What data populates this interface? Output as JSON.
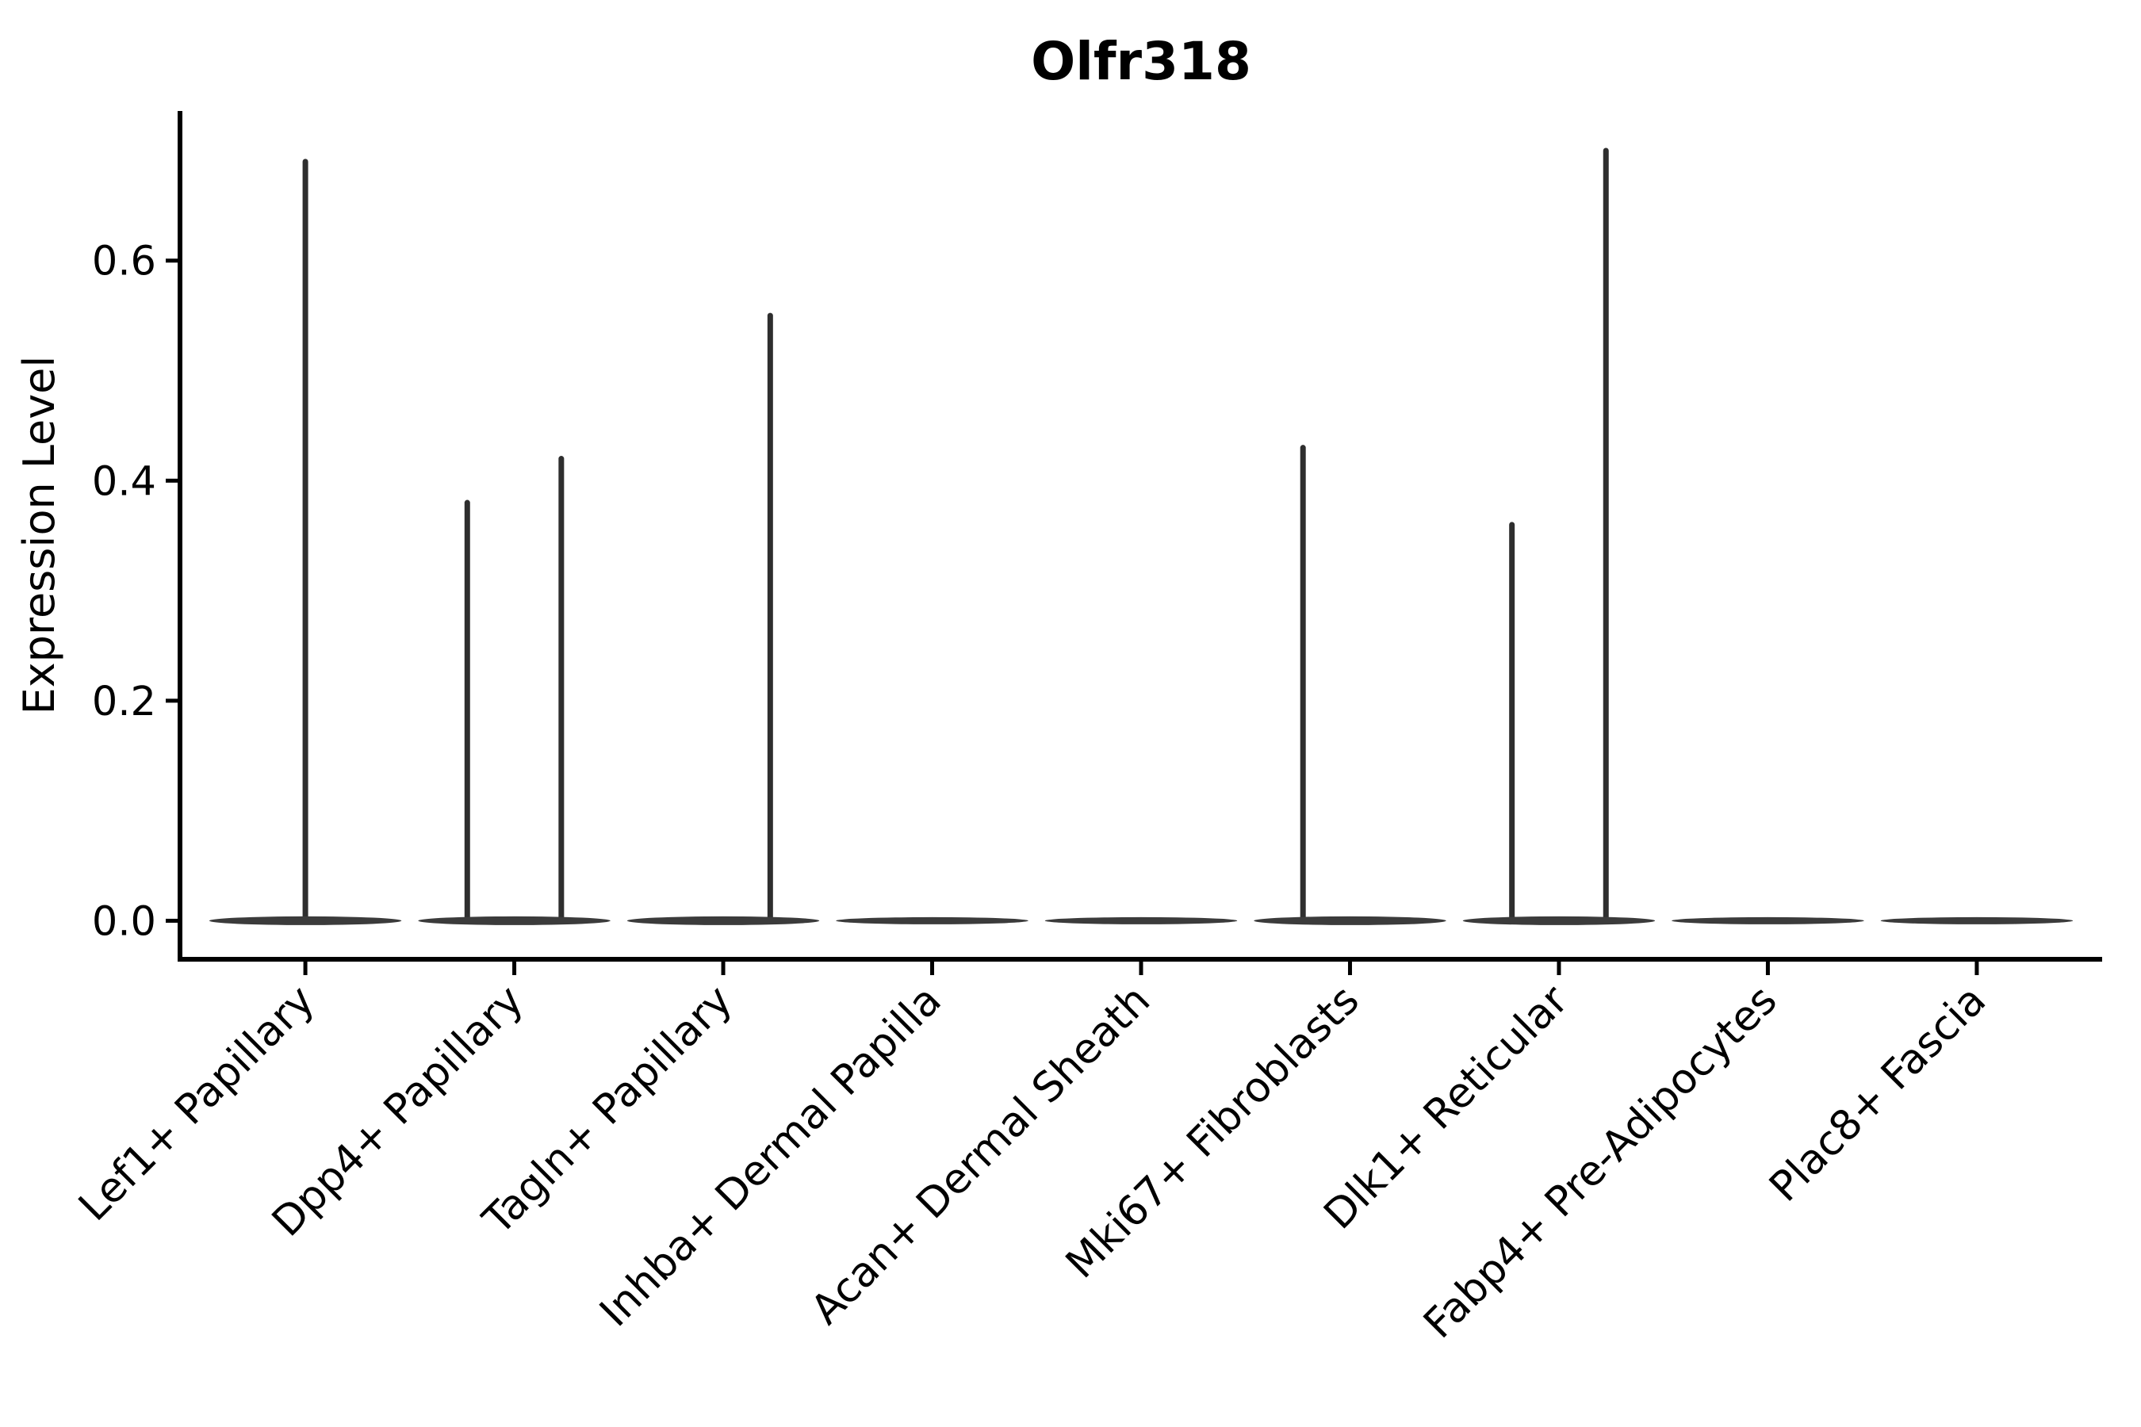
{
  "chart_data": {
    "type": "violin",
    "title": "Olfr318",
    "ylabel": "Expression Level",
    "xlabel": "",
    "grid": false,
    "legend": "none",
    "ylim": [
      -0.035,
      0.736
    ],
    "yticks": [
      "0.0",
      "0.2",
      "0.4",
      "0.6"
    ],
    "ytick_values": [
      0.0,
      0.2,
      0.4,
      0.6
    ],
    "categories": [
      "Lef1+ Papillary",
      "Dpp4+ Papillary",
      "Tagln+ Papillary",
      "Inhba+ Dermal Papilla",
      "Acan+ Dermal Sheath",
      "Mki67+ Fibroblasts",
      "Dlk1+ Reticular",
      "Fabp4+ Pre-Adipocytes",
      "Plac8+ Fascia"
    ],
    "violins": [
      {
        "category": "Lef1+ Papillary",
        "base_value": 0.0,
        "spikes": [
          {
            "offset": 0.0,
            "value": 0.69
          }
        ]
      },
      {
        "category": "Dpp4+ Papillary",
        "base_value": 0.0,
        "spikes": [
          {
            "offset": -0.225,
            "value": 0.38
          },
          {
            "offset": 0.225,
            "value": 0.42
          }
        ]
      },
      {
        "category": "Tagln+ Papillary",
        "base_value": 0.0,
        "spikes": [
          {
            "offset": 0.225,
            "value": 0.55
          }
        ]
      },
      {
        "category": "Inhba+ Dermal Papilla",
        "base_value": 0.0,
        "spikes": []
      },
      {
        "category": "Acan+ Dermal Sheath",
        "base_value": 0.0,
        "spikes": []
      },
      {
        "category": "Mki67+ Fibroblasts",
        "base_value": 0.0,
        "spikes": [
          {
            "offset": -0.225,
            "value": 0.43
          }
        ]
      },
      {
        "category": "Dlk1+ Reticular",
        "base_value": 0.0,
        "spikes": [
          {
            "offset": -0.225,
            "value": 0.36
          },
          {
            "offset": 0.225,
            "value": 0.7
          }
        ]
      },
      {
        "category": "Fabp4+ Pre-Adipocytes",
        "base_value": 0.0,
        "spikes": []
      },
      {
        "category": "Plac8+ Fascia",
        "base_value": 0.0,
        "spikes": []
      }
    ],
    "colors": {
      "background": "#ffffff",
      "violin_fill": "#3b3b3b",
      "spike": "#2e2e2e",
      "axis": "#000000",
      "text": "#000000"
    }
  }
}
